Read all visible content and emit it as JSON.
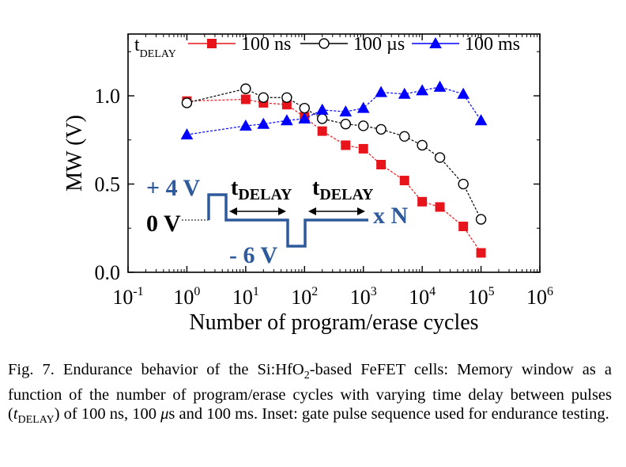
{
  "chart_data": {
    "type": "scatter",
    "xlabel": "Number of program/erase cycles",
    "ylabel": "MW (V)",
    "x_scale": "log",
    "xlim": [
      0.1,
      1000000
    ],
    "ylim": [
      0.0,
      1.35
    ],
    "x_ticks": [
      {
        "mant": "10",
        "exp": "-1"
      },
      {
        "mant": "10",
        "exp": "0"
      },
      {
        "mant": "10",
        "exp": "1"
      },
      {
        "mant": "10",
        "exp": "2"
      },
      {
        "mant": "10",
        "exp": "3"
      },
      {
        "mant": "10",
        "exp": "4"
      },
      {
        "mant": "10",
        "exp": "5"
      },
      {
        "mant": "10",
        "exp": "6"
      }
    ],
    "y_ticks": [
      "0.0",
      "0.5",
      "1.0"
    ],
    "grid": false,
    "legend": {
      "position": "top",
      "title": "t",
      "title_sub": "DELAY"
    },
    "series": [
      {
        "name": "100 ns",
        "marker": "square",
        "color": "#e8141c",
        "fill": "#e8141c",
        "x": [
          1,
          10,
          20,
          50,
          100,
          200,
          500,
          1000,
          2000,
          5000,
          10000,
          20000,
          50000,
          100000
        ],
        "y": [
          0.97,
          0.98,
          0.96,
          0.95,
          0.88,
          0.8,
          0.72,
          0.7,
          0.61,
          0.52,
          0.4,
          0.37,
          0.26,
          0.11
        ]
      },
      {
        "name": "100 µs",
        "marker": "circle",
        "color": "#000000",
        "fill": "#ffffff",
        "x": [
          1,
          10,
          20,
          50,
          100,
          200,
          500,
          1000,
          2000,
          5000,
          10000,
          20000,
          50000,
          100000
        ],
        "y": [
          0.96,
          1.04,
          0.99,
          0.99,
          0.93,
          0.87,
          0.84,
          0.83,
          0.81,
          0.77,
          0.72,
          0.65,
          0.5,
          0.3
        ]
      },
      {
        "name": "100 ms",
        "marker": "triangle",
        "color": "#0000ff",
        "fill": "#0000ff",
        "x": [
          1,
          10,
          20,
          50,
          100,
          200,
          500,
          1000,
          2000,
          5000,
          10000,
          20000,
          50000,
          100000
        ],
        "y": [
          0.78,
          0.83,
          0.84,
          0.86,
          0.87,
          0.92,
          0.91,
          0.93,
          1.02,
          1.01,
          1.03,
          1.05,
          1.01,
          0.86
        ]
      }
    ],
    "inset": {
      "color": "#2e5a9c",
      "label_plus": "+ 4 V",
      "label_zero": "0 V",
      "label_minus": "- 6 V",
      "label_repeat": "x N",
      "t_main": "t",
      "t_sub": "DELAY"
    }
  },
  "caption": {
    "prefix": "Fig. 7.    Endurance behavior of the Si:HfO",
    "sub1": "2",
    "mid1": "-based FeFET cells: Memory window as a function of the number of program/erase cycles with varying time delay between pulses (",
    "t": "t",
    "sub2": "DELAY",
    "mid2": ") of 100 ns, 100 ",
    "mu": "μ",
    "suffix": "s and 100 ms. Inset: gate pulse sequence used for endurance testing."
  }
}
